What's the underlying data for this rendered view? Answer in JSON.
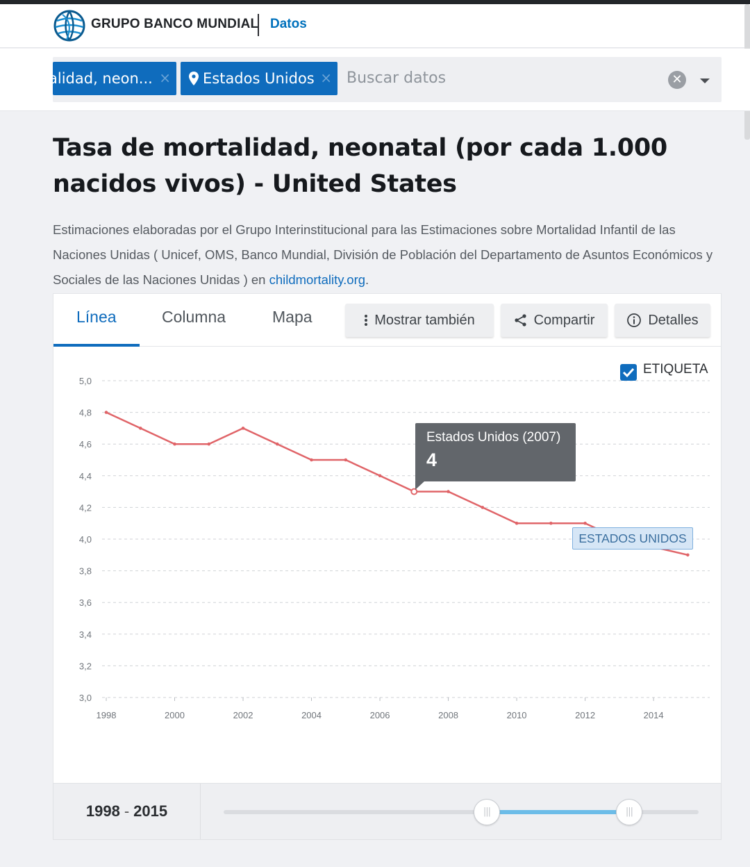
{
  "header": {
    "brand": "GRUPO BANCO MUNDIAL",
    "section": "Datos"
  },
  "search": {
    "chips": [
      {
        "label": "alidad, neon...",
        "remove": "×"
      },
      {
        "label": "Estados Unidos",
        "remove": "×"
      }
    ],
    "placeholder": "Buscar datos",
    "clear": "✕"
  },
  "page": {
    "title": "Tasa de mortalidad, neonatal (por cada 1.000 nacidos vivos) - United States",
    "description": "Estimaciones elaboradas por el Grupo Interinstitucional para las Estimaciones sobre Mortalidad Infantil de las Naciones Unidas ( Unicef, OMS, Banco Mundial, División de Población del Departamento de Asuntos Económicos y Sociales de las Naciones Unidas ) en ",
    "source_link": "childmortality.org",
    "source_suffix": "."
  },
  "tabs": [
    {
      "label": "Línea",
      "active": true
    },
    {
      "label": "Columna",
      "active": false
    },
    {
      "label": "Mapa",
      "active": false
    }
  ],
  "toolbar": {
    "show_also": "Mostrar también",
    "share": "Compartir",
    "details": "Detalles"
  },
  "chart_label_toggle": {
    "label": "ETIQUETA",
    "checked": true
  },
  "tooltip": {
    "title": "Estados Unidos (2007)",
    "value": "4"
  },
  "series_label": "ESTADOS UNIDOS",
  "range": {
    "start": "1998",
    "end": "2015",
    "dash": "-"
  },
  "colors": {
    "accent": "#0f6cbd",
    "series": "#e06468",
    "tooltip_bg": "#62666b"
  },
  "chart_data": {
    "type": "line",
    "x": [
      1998,
      1999,
      2000,
      2001,
      2002,
      2003,
      2004,
      2005,
      2006,
      2007,
      2008,
      2009,
      2010,
      2011,
      2012,
      2013,
      2014,
      2015
    ],
    "series": [
      {
        "name": "ESTADOS UNIDOS",
        "values": [
          4.8,
          4.7,
          4.6,
          4.6,
          4.7,
          4.6,
          4.5,
          4.5,
          4.4,
          4.3,
          4.3,
          4.2,
          4.1,
          4.1,
          4.1,
          4.0,
          3.95,
          3.9
        ]
      }
    ],
    "ylim": [
      3.0,
      5.0
    ],
    "yticks": [
      "3,0",
      "3,2",
      "3,4",
      "3,6",
      "3,8",
      "4,0",
      "4,2",
      "4,4",
      "4,6",
      "4,8",
      "5,0"
    ],
    "xticks": [
      "1998",
      "2000",
      "2002",
      "2004",
      "2006",
      "2008",
      "2010",
      "2012",
      "2014"
    ],
    "highlight_year": 2007,
    "grid": true
  }
}
